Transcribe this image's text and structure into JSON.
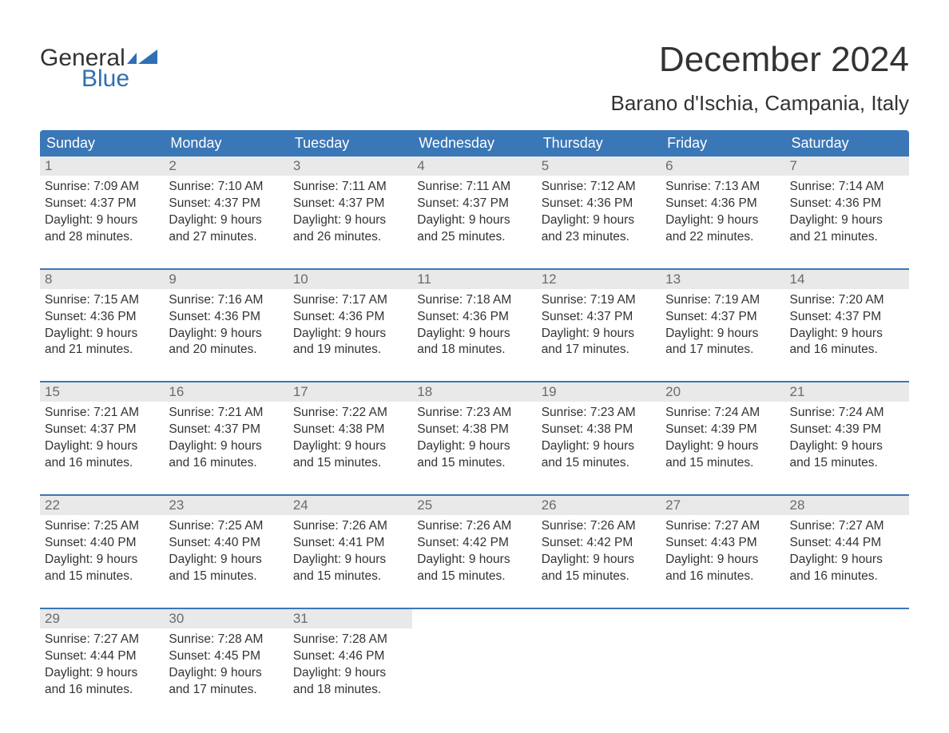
{
  "logo": {
    "line1": "General",
    "line2": "Blue",
    "brand_color": "#2f6fb3"
  },
  "title": "December 2024",
  "location": "Barano d'Ischia, Campania, Italy",
  "colors": {
    "header_bg": "#3a77b6",
    "header_text": "#ffffff",
    "daynum_bg": "#e9e9e9",
    "daynum_text": "#6b6b6b",
    "body_text": "#333333",
    "week_border": "#3a77b6",
    "page_bg": "#ffffff"
  },
  "typography": {
    "title_fontsize": 44,
    "location_fontsize": 26,
    "dow_fontsize": 18,
    "daynum_fontsize": 17,
    "body_fontsize": 15.5,
    "font_family": "Arial"
  },
  "days_of_week": [
    "Sunday",
    "Monday",
    "Tuesday",
    "Wednesday",
    "Thursday",
    "Friday",
    "Saturday"
  ],
  "weeks": [
    [
      {
        "n": "1",
        "sunrise": "Sunrise: 7:09 AM",
        "sunset": "Sunset: 4:37 PM",
        "d1": "Daylight: 9 hours",
        "d2": "and 28 minutes."
      },
      {
        "n": "2",
        "sunrise": "Sunrise: 7:10 AM",
        "sunset": "Sunset: 4:37 PM",
        "d1": "Daylight: 9 hours",
        "d2": "and 27 minutes."
      },
      {
        "n": "3",
        "sunrise": "Sunrise: 7:11 AM",
        "sunset": "Sunset: 4:37 PM",
        "d1": "Daylight: 9 hours",
        "d2": "and 26 minutes."
      },
      {
        "n": "4",
        "sunrise": "Sunrise: 7:11 AM",
        "sunset": "Sunset: 4:37 PM",
        "d1": "Daylight: 9 hours",
        "d2": "and 25 minutes."
      },
      {
        "n": "5",
        "sunrise": "Sunrise: 7:12 AM",
        "sunset": "Sunset: 4:36 PM",
        "d1": "Daylight: 9 hours",
        "d2": "and 23 minutes."
      },
      {
        "n": "6",
        "sunrise": "Sunrise: 7:13 AM",
        "sunset": "Sunset: 4:36 PM",
        "d1": "Daylight: 9 hours",
        "d2": "and 22 minutes."
      },
      {
        "n": "7",
        "sunrise": "Sunrise: 7:14 AM",
        "sunset": "Sunset: 4:36 PM",
        "d1": "Daylight: 9 hours",
        "d2": "and 21 minutes."
      }
    ],
    [
      {
        "n": "8",
        "sunrise": "Sunrise: 7:15 AM",
        "sunset": "Sunset: 4:36 PM",
        "d1": "Daylight: 9 hours",
        "d2": "and 21 minutes."
      },
      {
        "n": "9",
        "sunrise": "Sunrise: 7:16 AM",
        "sunset": "Sunset: 4:36 PM",
        "d1": "Daylight: 9 hours",
        "d2": "and 20 minutes."
      },
      {
        "n": "10",
        "sunrise": "Sunrise: 7:17 AM",
        "sunset": "Sunset: 4:36 PM",
        "d1": "Daylight: 9 hours",
        "d2": "and 19 minutes."
      },
      {
        "n": "11",
        "sunrise": "Sunrise: 7:18 AM",
        "sunset": "Sunset: 4:36 PM",
        "d1": "Daylight: 9 hours",
        "d2": "and 18 minutes."
      },
      {
        "n": "12",
        "sunrise": "Sunrise: 7:19 AM",
        "sunset": "Sunset: 4:37 PM",
        "d1": "Daylight: 9 hours",
        "d2": "and 17 minutes."
      },
      {
        "n": "13",
        "sunrise": "Sunrise: 7:19 AM",
        "sunset": "Sunset: 4:37 PM",
        "d1": "Daylight: 9 hours",
        "d2": "and 17 minutes."
      },
      {
        "n": "14",
        "sunrise": "Sunrise: 7:20 AM",
        "sunset": "Sunset: 4:37 PM",
        "d1": "Daylight: 9 hours",
        "d2": "and 16 minutes."
      }
    ],
    [
      {
        "n": "15",
        "sunrise": "Sunrise: 7:21 AM",
        "sunset": "Sunset: 4:37 PM",
        "d1": "Daylight: 9 hours",
        "d2": "and 16 minutes."
      },
      {
        "n": "16",
        "sunrise": "Sunrise: 7:21 AM",
        "sunset": "Sunset: 4:37 PM",
        "d1": "Daylight: 9 hours",
        "d2": "and 16 minutes."
      },
      {
        "n": "17",
        "sunrise": "Sunrise: 7:22 AM",
        "sunset": "Sunset: 4:38 PM",
        "d1": "Daylight: 9 hours",
        "d2": "and 15 minutes."
      },
      {
        "n": "18",
        "sunrise": "Sunrise: 7:23 AM",
        "sunset": "Sunset: 4:38 PM",
        "d1": "Daylight: 9 hours",
        "d2": "and 15 minutes."
      },
      {
        "n": "19",
        "sunrise": "Sunrise: 7:23 AM",
        "sunset": "Sunset: 4:38 PM",
        "d1": "Daylight: 9 hours",
        "d2": "and 15 minutes."
      },
      {
        "n": "20",
        "sunrise": "Sunrise: 7:24 AM",
        "sunset": "Sunset: 4:39 PM",
        "d1": "Daylight: 9 hours",
        "d2": "and 15 minutes."
      },
      {
        "n": "21",
        "sunrise": "Sunrise: 7:24 AM",
        "sunset": "Sunset: 4:39 PM",
        "d1": "Daylight: 9 hours",
        "d2": "and 15 minutes."
      }
    ],
    [
      {
        "n": "22",
        "sunrise": "Sunrise: 7:25 AM",
        "sunset": "Sunset: 4:40 PM",
        "d1": "Daylight: 9 hours",
        "d2": "and 15 minutes."
      },
      {
        "n": "23",
        "sunrise": "Sunrise: 7:25 AM",
        "sunset": "Sunset: 4:40 PM",
        "d1": "Daylight: 9 hours",
        "d2": "and 15 minutes."
      },
      {
        "n": "24",
        "sunrise": "Sunrise: 7:26 AM",
        "sunset": "Sunset: 4:41 PM",
        "d1": "Daylight: 9 hours",
        "d2": "and 15 minutes."
      },
      {
        "n": "25",
        "sunrise": "Sunrise: 7:26 AM",
        "sunset": "Sunset: 4:42 PM",
        "d1": "Daylight: 9 hours",
        "d2": "and 15 minutes."
      },
      {
        "n": "26",
        "sunrise": "Sunrise: 7:26 AM",
        "sunset": "Sunset: 4:42 PM",
        "d1": "Daylight: 9 hours",
        "d2": "and 15 minutes."
      },
      {
        "n": "27",
        "sunrise": "Sunrise: 7:27 AM",
        "sunset": "Sunset: 4:43 PM",
        "d1": "Daylight: 9 hours",
        "d2": "and 16 minutes."
      },
      {
        "n": "28",
        "sunrise": "Sunrise: 7:27 AM",
        "sunset": "Sunset: 4:44 PM",
        "d1": "Daylight: 9 hours",
        "d2": "and 16 minutes."
      }
    ],
    [
      {
        "n": "29",
        "sunrise": "Sunrise: 7:27 AM",
        "sunset": "Sunset: 4:44 PM",
        "d1": "Daylight: 9 hours",
        "d2": "and 16 minutes."
      },
      {
        "n": "30",
        "sunrise": "Sunrise: 7:28 AM",
        "sunset": "Sunset: 4:45 PM",
        "d1": "Daylight: 9 hours",
        "d2": "and 17 minutes."
      },
      {
        "n": "31",
        "sunrise": "Sunrise: 7:28 AM",
        "sunset": "Sunset: 4:46 PM",
        "d1": "Daylight: 9 hours",
        "d2": "and 18 minutes."
      },
      null,
      null,
      null,
      null
    ]
  ]
}
